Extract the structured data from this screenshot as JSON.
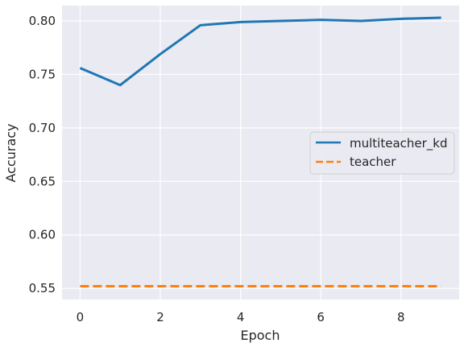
{
  "chart_data": {
    "type": "line",
    "title": "",
    "xlabel": "Epoch",
    "ylabel": "Accuracy",
    "xlim": [
      -0.45,
      9.45
    ],
    "ylim": [
      0.5396,
      0.8143
    ],
    "xticks": [
      0,
      2,
      4,
      6,
      8
    ],
    "yticks": [
      0.55,
      0.6,
      0.65,
      0.7,
      0.75,
      0.8
    ],
    "xtick_labels": [
      "0",
      "2",
      "4",
      "6",
      "8"
    ],
    "ytick_labels": [
      "0.55",
      "0.60",
      "0.65",
      "0.70",
      "0.75",
      "0.80"
    ],
    "x": [
      0,
      1,
      2,
      3,
      4,
      5,
      6,
      7,
      8,
      9
    ],
    "series": [
      {
        "name": "multiteacher_kd",
        "color": "#1f77b4",
        "style": "solid",
        "values": [
          0.756,
          0.74,
          0.769,
          0.796,
          0.799,
          0.8,
          0.801,
          0.8,
          0.802,
          0.803
        ]
      },
      {
        "name": "teacher",
        "color": "#ff7f0e",
        "style": "dashed",
        "values": [
          0.552,
          0.552,
          0.552,
          0.552,
          0.552,
          0.552,
          0.552,
          0.552,
          0.552,
          0.552
        ]
      }
    ],
    "grid": true,
    "legend_position": "center-right",
    "background_color": "#eaeaf2",
    "grid_color": "#ffffff"
  }
}
